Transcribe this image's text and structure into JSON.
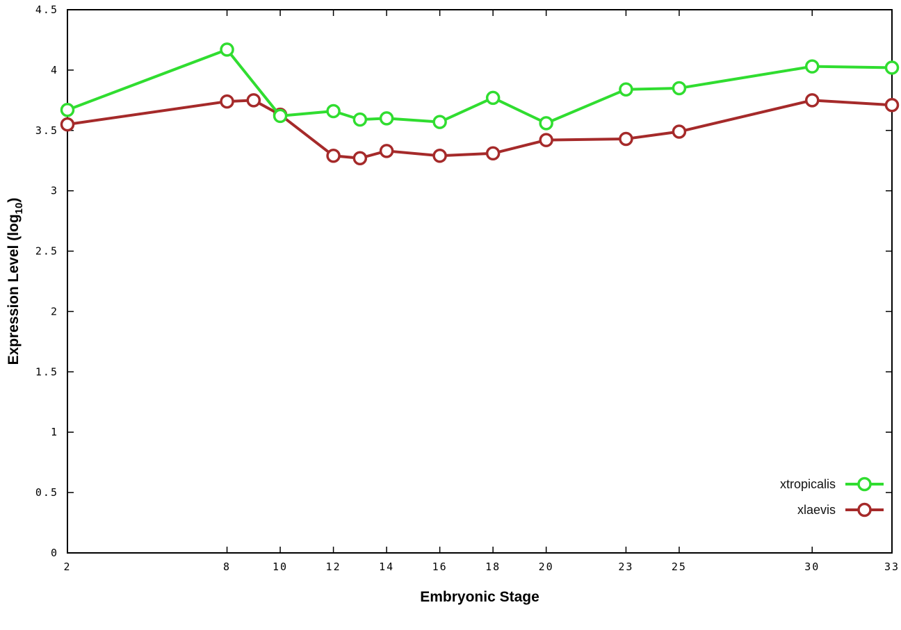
{
  "chart_data": {
    "type": "line",
    "title": "",
    "xlabel": "Embryonic Stage",
    "ylabel": "Expression Level (log10)",
    "ylabel_parts": {
      "prefix": "Expression Level (log",
      "sub": "10",
      "suffix": ")"
    },
    "xlim": [
      2,
      33
    ],
    "ylim": [
      0,
      4.5
    ],
    "xticks": [
      2,
      8,
      10,
      12,
      14,
      16,
      18,
      20,
      23,
      25,
      30,
      33
    ],
    "yticks": [
      0,
      0.5,
      1,
      1.5,
      2,
      2.5,
      3,
      3.5,
      4,
      4.5
    ],
    "grid": false,
    "legend_position": "bottom-right",
    "colors": {
      "background": "#ffffff",
      "axis": "#000000",
      "xtropicalis": "#30dd30",
      "xlaevis": "#a52a2a"
    },
    "series": [
      {
        "name": "xtropicalis",
        "color": "#30dd30",
        "x": [
          2,
          8,
          10,
          12,
          13,
          14,
          16,
          18,
          20,
          23,
          25,
          30,
          33
        ],
        "y": [
          3.67,
          4.17,
          3.62,
          3.66,
          3.59,
          3.6,
          3.57,
          3.77,
          3.56,
          3.84,
          3.85,
          4.03,
          4.02
        ]
      },
      {
        "name": "xlaevis",
        "color": "#a52a2a",
        "x": [
          2,
          8,
          9,
          10,
          12,
          13,
          14,
          16,
          18,
          20,
          23,
          25,
          30,
          33
        ],
        "y": [
          3.55,
          3.74,
          3.75,
          3.63,
          3.29,
          3.27,
          3.33,
          3.29,
          3.31,
          3.42,
          3.43,
          3.49,
          3.75,
          3.71
        ]
      }
    ]
  }
}
